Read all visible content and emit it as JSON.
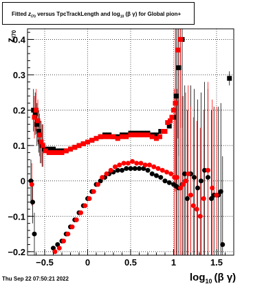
{
  "title_parts": {
    "prefix": "Fitted",
    "z_sym": "z",
    "z_sub": "I70",
    "mid": "versus TpcTrackLength and log",
    "log_sub": "10",
    "beta_gamma": "(β γ)",
    "suffix": "for Global pion+"
  },
  "footer": "Thu Sep 22 07:50:21 2022",
  "chart_data": {
    "type": "scatter",
    "xlim": [
      -0.7,
      1.7
    ],
    "ylim": [
      -0.21,
      0.43
    ],
    "x_ticks": [
      -0.5,
      0,
      0.5,
      1,
      1.5
    ],
    "x_tick_labels": [
      "−0.5",
      "0",
      "0.5",
      "1",
      "1.5"
    ],
    "y_ticks": [
      -0.2,
      -0.1,
      0,
      0.1,
      0.2,
      0.3,
      0.4
    ],
    "y_tick_labels": [
      "−0.2",
      "−0.1",
      "0",
      "0.1",
      "0.2",
      "0.3",
      "0.4"
    ],
    "xlabel_parts": {
      "main": "log",
      "sub": "10",
      "rest": "(β γ)"
    },
    "ylabel_parts": {
      "main": "z",
      "sub": "I70"
    },
    "grid": true,
    "colors": {
      "black_series": "#000000",
      "red_series": "#ff0000"
    },
    "series": [
      {
        "marker": "square",
        "color": "#000000",
        "x": [
          -0.63,
          -0.61,
          -0.59,
          -0.57,
          -0.55,
          -0.53,
          -0.5,
          -0.45,
          -0.4,
          -0.35,
          -0.3,
          -0.25,
          -0.2,
          -0.15,
          -0.1,
          -0.05,
          0.0,
          0.05,
          0.1,
          0.15,
          0.2,
          0.25,
          0.3,
          0.35,
          0.4,
          0.45,
          0.5,
          0.55,
          0.6,
          0.65,
          0.7,
          0.75,
          0.8,
          0.85,
          0.9,
          0.95,
          1.0,
          1.03,
          1.06,
          1.08,
          1.1,
          1.65
        ],
        "y": [
          0.2,
          0.19,
          0.16,
          0.14,
          0.11,
          0.1,
          0.09,
          0.09,
          0.09,
          0.085,
          0.085,
          0.085,
          0.09,
          0.095,
          0.1,
          0.105,
          0.11,
          0.115,
          0.12,
          0.125,
          0.13,
          0.13,
          0.125,
          0.125,
          0.13,
          0.13,
          0.135,
          0.135,
          0.135,
          0.135,
          0.135,
          0.13,
          0.13,
          0.14,
          0.14,
          0.155,
          0.18,
          0.24,
          0.32,
          0.4,
          0.4,
          0.29
        ]
      },
      {
        "marker": "square",
        "color": "#ff0000",
        "x": [
          -0.62,
          -0.6,
          -0.58,
          -0.56,
          -0.54,
          -0.52,
          -0.49,
          -0.45,
          -0.4,
          -0.35,
          -0.3,
          -0.25,
          -0.2,
          -0.15,
          -0.1,
          -0.05,
          0.0,
          0.05,
          0.1,
          0.15,
          0.2,
          0.25,
          0.3,
          0.35,
          0.4,
          0.45,
          0.5,
          0.55,
          0.6,
          0.65,
          0.7,
          0.75,
          0.8,
          0.84,
          0.88,
          0.9,
          0.93,
          0.96,
          0.98,
          1.0,
          1.02,
          1.05,
          1.08
        ],
        "y": [
          0.18,
          0.2,
          0.17,
          0.13,
          0.11,
          0.1,
          0.085,
          0.08,
          0.08,
          0.08,
          0.08,
          0.085,
          0.09,
          0.095,
          0.1,
          0.105,
          0.11,
          0.115,
          0.12,
          0.125,
          0.125,
          0.125,
          0.125,
          0.12,
          0.125,
          0.125,
          0.13,
          0.13,
          0.13,
          0.13,
          0.13,
          0.125,
          0.12,
          0.125,
          0.14,
          0.14,
          0.165,
          0.17,
          0.18,
          0.2,
          0.22,
          0.37,
          0.4
        ]
      },
      {
        "marker": "circle",
        "color": "#000000",
        "x": [
          -0.66,
          -0.64,
          -0.62,
          -0.4,
          -0.35,
          -0.3,
          -0.25,
          -0.2,
          -0.15,
          -0.1,
          -0.05,
          0.0,
          0.05,
          0.1,
          0.15,
          0.2,
          0.25,
          0.3,
          0.35,
          0.4,
          0.45,
          0.5,
          0.55,
          0.6,
          0.65,
          0.7,
          0.75,
          0.8,
          0.85,
          0.9,
          0.95,
          1.0,
          1.03,
          1.06,
          1.1,
          1.13,
          1.16,
          1.2,
          1.24,
          1.28,
          1.32,
          1.36,
          1.4,
          1.44,
          1.47,
          1.52,
          1.55,
          1.57
        ],
        "y": [
          0.0,
          -0.06,
          -0.15,
          -0.19,
          -0.18,
          -0.17,
          -0.15,
          -0.13,
          -0.11,
          -0.09,
          -0.07,
          -0.05,
          -0.03,
          -0.01,
          0.0,
          0.01,
          0.02,
          0.025,
          0.03,
          0.03,
          0.035,
          0.035,
          0.035,
          0.035,
          0.035,
          0.03,
          0.02,
          0.015,
          0.01,
          0.0,
          -0.005,
          -0.01,
          -0.015,
          -0.02,
          -0.01,
          0.02,
          -0.05,
          0.02,
          0.01,
          -0.02,
          0.0,
          0.03,
          0.01,
          -0.05,
          -0.04,
          -0.04,
          -0.03,
          -0.18
        ]
      },
      {
        "marker": "circle",
        "color": "#ff0000",
        "x": [
          -0.65,
          -0.38,
          -0.33,
          -0.28,
          -0.23,
          -0.18,
          -0.13,
          -0.08,
          -0.03,
          0.02,
          0.07,
          0.12,
          0.17,
          0.22,
          0.27,
          0.32,
          0.37,
          0.42,
          0.47,
          0.52,
          0.57,
          0.62,
          0.67,
          0.72,
          0.77,
          0.82,
          0.87,
          0.92,
          0.97,
          1.01,
          1.04,
          1.08,
          1.11,
          1.14,
          1.17,
          1.2,
          1.23,
          1.27,
          1.31,
          1.35,
          1.4,
          1.45,
          1.5
        ],
        "y": [
          -0.01,
          -0.2,
          -0.19,
          -0.17,
          -0.15,
          -0.13,
          -0.11,
          -0.09,
          -0.07,
          -0.05,
          -0.03,
          -0.01,
          0.01,
          0.02,
          0.03,
          0.04,
          0.045,
          0.05,
          0.05,
          0.055,
          0.05,
          0.05,
          0.045,
          0.045,
          0.04,
          0.035,
          0.03,
          0.025,
          0.02,
          0.01,
          0.01,
          -0.02,
          -0.01,
          0.0,
          0.02,
          -0.04,
          -0.07,
          -0.08,
          -0.1,
          -0.05,
          0.03,
          -0.02,
          -0.04
        ]
      }
    ]
  }
}
